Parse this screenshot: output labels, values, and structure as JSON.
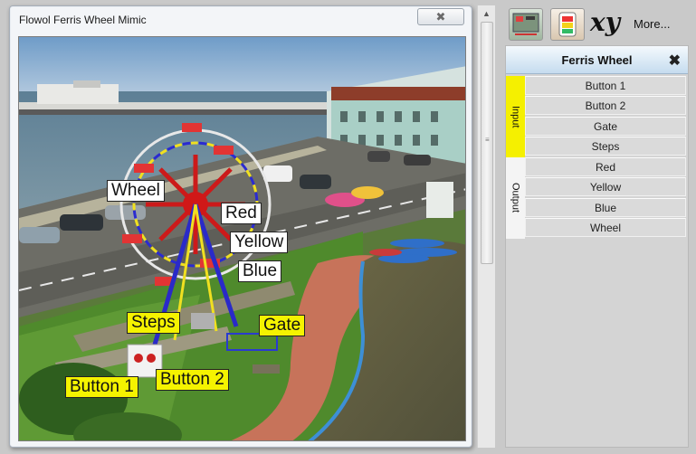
{
  "window": {
    "title": "Flowol Ferris Wheel Mimic",
    "close_glyph": "✖"
  },
  "mimic": {
    "labels": {
      "wheel": "Wheel",
      "red": "Red",
      "yellow": "Yellow",
      "blue": "Blue",
      "steps": "Steps",
      "gate": "Gate",
      "button1": "Button 1",
      "button2": "Button 2"
    }
  },
  "toolbar": {
    "icons": [
      "mimic-board-icon",
      "lamp-tool-icon"
    ],
    "xy_label": "xy",
    "more_label": "More..."
  },
  "panel": {
    "title": "Ferris Wheel",
    "pin_icon": "pin-icon",
    "input_group": {
      "label": "Input",
      "items": [
        "Button 1",
        "Button 2",
        "Gate",
        "Steps"
      ]
    },
    "output_group": {
      "label": "Output",
      "items": [
        "Red",
        "Yellow",
        "Blue",
        "Wheel"
      ]
    }
  },
  "colors": {
    "input_tag": "#f5f000",
    "output_tag": "#f4f4f4",
    "label_yellow": "#f5f300"
  }
}
